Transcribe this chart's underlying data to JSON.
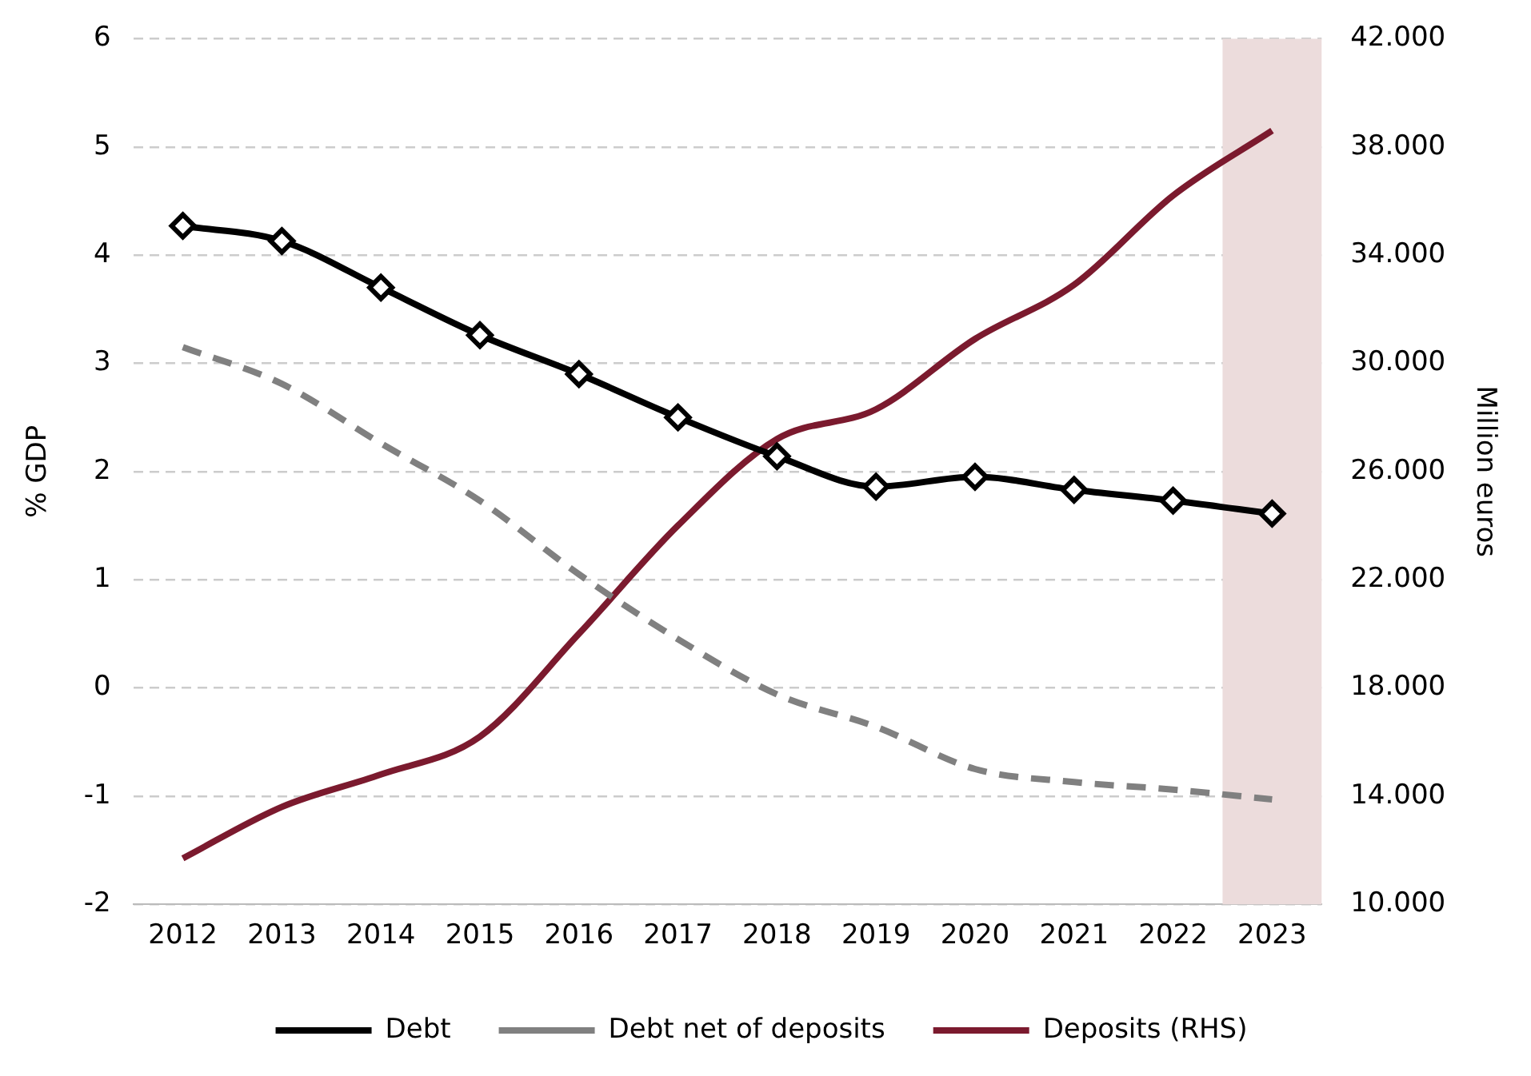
{
  "chart_data": {
    "type": "line",
    "ylabel": "% GDP",
    "y2label": "Million euros",
    "categories": [
      "2012",
      "2013",
      "2014",
      "2015",
      "2016",
      "2017",
      "2018",
      "2019",
      "2020",
      "2021",
      "2022",
      "2023"
    ],
    "series": [
      {
        "name": "Debt",
        "color": "#000000",
        "marker": "diamond",
        "line_style": "solid",
        "values": [
          4.27,
          4.13,
          3.7,
          3.26,
          2.9,
          2.5,
          2.14,
          1.86,
          1.95,
          1.83,
          1.73,
          1.61
        ]
      },
      {
        "name": "Debt net of deposits",
        "color": "#808080",
        "marker": "none",
        "line_style": "dashed",
        "values": [
          3.15,
          2.81,
          2.26,
          1.73,
          1.05,
          0.45,
          -0.06,
          -0.36,
          -0.75,
          -0.87,
          -0.94,
          -1.03
        ]
      },
      {
        "name": "Deposits (RHS)",
        "color": "#7b1a2e",
        "marker": "none",
        "line_style": "solid",
        "axis": "y2",
        "values": [
          11700,
          13600,
          14800,
          16200,
          20000,
          24000,
          27200,
          28300,
          30900,
          32900,
          36200,
          38600
        ]
      }
    ],
    "ylim": [
      -2,
      6
    ],
    "yticks": [
      -2,
      -1,
      0,
      1,
      2,
      3,
      4,
      5,
      6
    ],
    "y2lim": [
      10000,
      42000
    ],
    "y2ticks": [
      {
        "value": 10000,
        "label": "10.000"
      },
      {
        "value": 14000,
        "label": "14.000"
      },
      {
        "value": 18000,
        "label": "18.000"
      },
      {
        "value": 22000,
        "label": "22.000"
      },
      {
        "value": 26000,
        "label": "26.000"
      },
      {
        "value": 30000,
        "label": "30.000"
      },
      {
        "value": 34000,
        "label": "34.000"
      },
      {
        "value": 38000,
        "label": "38.000"
      },
      {
        "value": 42000,
        "label": "42.000"
      }
    ],
    "bands": [
      {
        "axis": "x",
        "from": "2023",
        "to": "2023",
        "color": "#ecdcdc"
      }
    ],
    "grid": "y",
    "legend": "bottom"
  }
}
